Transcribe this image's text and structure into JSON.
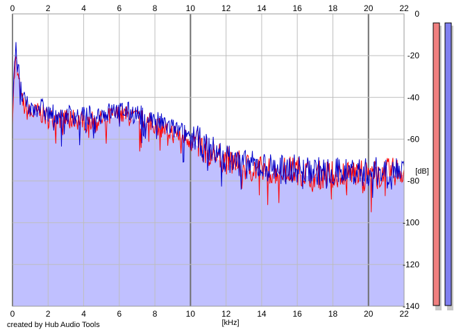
{
  "app": {
    "credit": "created by Hub Audio Tools"
  },
  "chart_data": {
    "type": "area",
    "xlabel": "[kHz]",
    "ylabel": "[dB]",
    "xlim": [
      0,
      22
    ],
    "ylim": [
      -140,
      0
    ],
    "x_ticks": [
      0,
      2,
      4,
      6,
      8,
      10,
      12,
      14,
      16,
      18,
      20,
      22
    ],
    "y_ticks": [
      0,
      -20,
      -40,
      -60,
      -80,
      -100,
      -120,
      -140
    ],
    "grid": true,
    "series": [
      {
        "color": "#ff0000",
        "x": [
          0,
          0.1,
          0.2,
          0.3,
          0.5,
          0.7,
          1.0,
          1.5,
          2.0,
          3.0,
          4.0,
          5.0,
          6.0,
          7.0,
          8.0,
          9.0,
          10.0,
          11.0,
          12.0,
          13.0,
          14.0,
          15.0,
          16.0,
          17.0,
          18.0,
          19.0,
          20.0,
          21.0,
          22.0
        ],
        "values": [
          -48,
          -30,
          -22,
          -30,
          -41,
          -45,
          -48,
          -47,
          -50,
          -50,
          -51,
          -51,
          -48,
          -50,
          -53,
          -57,
          -60,
          -66,
          -70,
          -73,
          -75,
          -75,
          -75,
          -77,
          -77,
          -76,
          -77,
          -76,
          -75
        ]
      },
      {
        "color": "#0000cc",
        "x": [
          0,
          0.1,
          0.2,
          0.3,
          0.5,
          0.7,
          1.0,
          1.5,
          2.0,
          3.0,
          4.0,
          5.0,
          6.0,
          7.0,
          8.0,
          9.0,
          10.0,
          11.0,
          12.0,
          13.0,
          14.0,
          15.0,
          16.0,
          17.0,
          18.0,
          19.0,
          20.0,
          21.0,
          22.0
        ],
        "values": [
          -45,
          -24,
          -18,
          -26,
          -38,
          -43,
          -46,
          -44,
          -48,
          -48,
          -49,
          -48,
          -46,
          -48,
          -51,
          -55,
          -58,
          -64,
          -69,
          -72,
          -73,
          -74,
          -74,
          -75,
          -76,
          -75,
          -76,
          -75,
          -74
        ]
      }
    ],
    "level_meters": [
      {
        "channel": "left",
        "color": "#f08080",
        "level_db": -140
      },
      {
        "channel": "right",
        "color": "#8080f0",
        "level_db": -140
      }
    ],
    "colors": {
      "fill": "#c0c0ff",
      "grid_minor": "#bdbdbd",
      "grid_major": "#6e6e6e"
    }
  }
}
